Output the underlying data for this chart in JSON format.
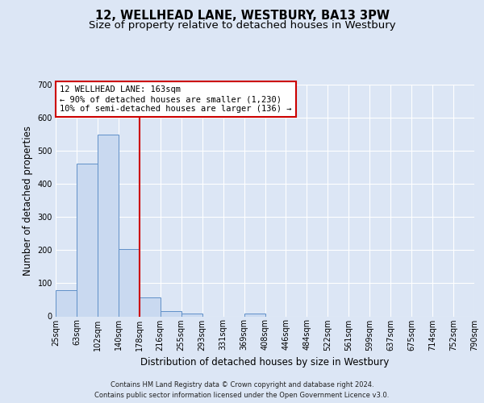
{
  "title": "12, WELLHEAD LANE, WESTBURY, BA13 3PW",
  "subtitle": "Size of property relative to detached houses in Westbury",
  "xlabel": "Distribution of detached houses by size in Westbury",
  "ylabel": "Number of detached properties",
  "bar_values": [
    78,
    462,
    550,
    203,
    57,
    15,
    8,
    0,
    0,
    8,
    0,
    0,
    0,
    0,
    0,
    0,
    0,
    0,
    0,
    0
  ],
  "bin_labels": [
    "25sqm",
    "63sqm",
    "102sqm",
    "140sqm",
    "178sqm",
    "216sqm",
    "255sqm",
    "293sqm",
    "331sqm",
    "369sqm",
    "408sqm",
    "446sqm",
    "484sqm",
    "522sqm",
    "561sqm",
    "599sqm",
    "637sqm",
    "675sqm",
    "714sqm",
    "752sqm",
    "790sqm"
  ],
  "bar_color": "#c9d9f0",
  "bar_edge_color": "#6090c8",
  "vline_color": "#cc0000",
  "annotation_text": "12 WELLHEAD LANE: 163sqm\n← 90% of detached houses are smaller (1,230)\n10% of semi-detached houses are larger (136) →",
  "annotation_box_color": "#ffffff",
  "annotation_box_edge": "#cc0000",
  "footer_text": "Contains HM Land Registry data © Crown copyright and database right 2024.\nContains public sector information licensed under the Open Government Licence v3.0.",
  "ylim": [
    0,
    700
  ],
  "yticks": [
    0,
    100,
    200,
    300,
    400,
    500,
    600,
    700
  ],
  "background_color": "#dce6f5",
  "plot_bg_color": "#dce6f5",
  "grid_color": "#ffffff",
  "title_fontsize": 10.5,
  "subtitle_fontsize": 9.5,
  "tick_fontsize": 7,
  "ylabel_fontsize": 8.5,
  "xlabel_fontsize": 8.5,
  "footer_fontsize": 6.0
}
